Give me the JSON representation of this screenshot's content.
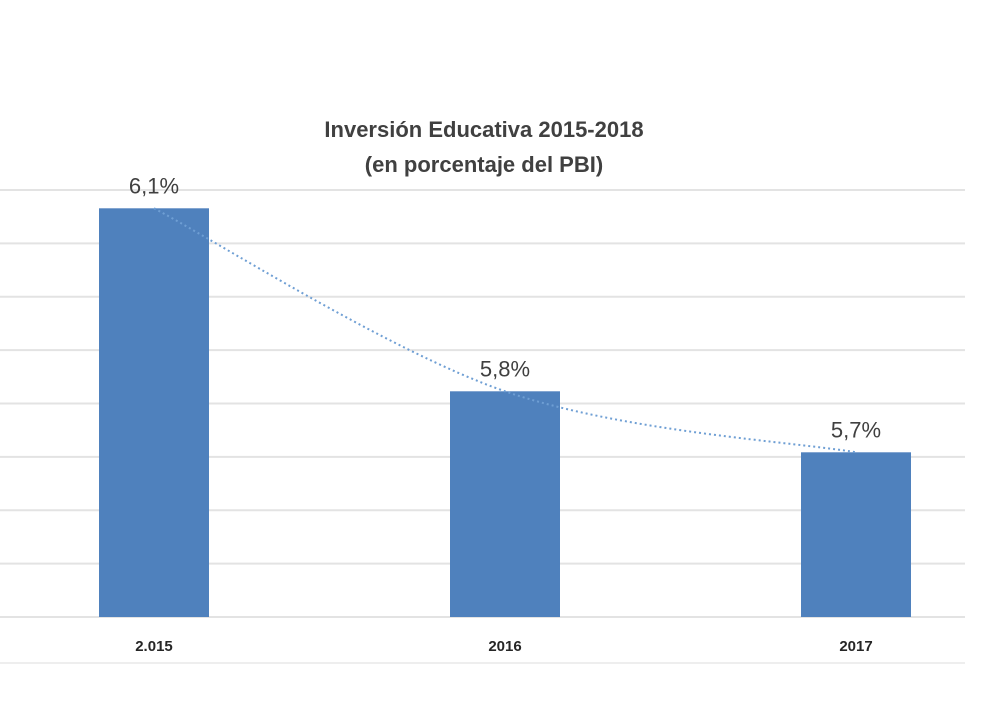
{
  "chart_data": {
    "type": "bar",
    "title": "Inversión Educativa 2015-2018",
    "subtitle": "(en porcentaje del PBI)",
    "categories": [
      "2.015",
      "2016",
      "2017"
    ],
    "values": [
      6.1,
      5.8,
      5.7
    ],
    "data_labels": [
      "6,1%",
      "5,8%",
      "5,7%"
    ],
    "ylim": [
      5.43,
      6.13
    ],
    "grid": true,
    "trendline": "dotted",
    "colors": {
      "bar": "#4f81bd",
      "trendline": "#6f9fd4",
      "grid": "#e3e3e3"
    }
  }
}
